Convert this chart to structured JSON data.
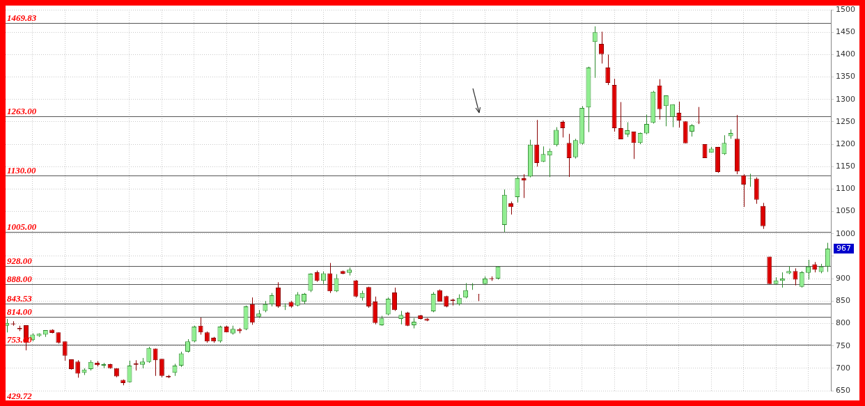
{
  "chart_data": {
    "type": "candlestick",
    "categories": [
      null,
      null,
      null,
      null,
      null,
      null,
      null,
      null,
      null,
      null,
      null,
      null,
      null,
      null,
      null,
      null,
      null,
      null,
      null,
      null,
      null,
      null,
      null,
      null,
      null,
      null,
      null,
      null,
      null,
      null,
      null,
      null,
      null,
      null,
      null,
      null,
      null,
      null,
      null,
      null,
      null,
      null,
      null,
      null,
      null,
      null,
      null,
      null,
      null,
      null,
      null,
      null,
      null,
      null,
      null,
      null,
      null,
      null,
      null,
      null,
      null,
      null,
      null,
      null,
      null,
      null,
      null,
      null,
      null,
      null,
      null,
      null,
      null,
      null,
      null,
      null,
      null,
      null,
      null,
      null,
      null,
      null,
      null,
      null,
      null,
      null,
      null,
      null,
      null,
      null,
      null,
      null,
      null,
      null,
      null,
      null,
      null,
      null,
      null,
      null,
      null,
      null,
      null,
      null,
      null,
      null,
      null,
      null,
      null,
      null,
      null,
      null,
      null,
      null,
      null,
      null,
      null,
      null,
      null,
      null,
      null,
      null,
      null,
      null,
      null,
      null,
      null,
      null
    ],
    "ohlc": [
      [
        795,
        810,
        780,
        801
      ],
      [
        800,
        805,
        795,
        798
      ],
      [
        790,
        795,
        783,
        787
      ],
      [
        796,
        796,
        740,
        757
      ],
      [
        763,
        778,
        760,
        775
      ],
      [
        772,
        778,
        770,
        777
      ],
      [
        775,
        785,
        770,
        785
      ],
      [
        786,
        787,
        778,
        779
      ],
      [
        780,
        780,
        755,
        757
      ],
      [
        760,
        760,
        717,
        728
      ],
      [
        720,
        720,
        697,
        698
      ],
      [
        715,
        718,
        679,
        688
      ],
      [
        690,
        700,
        685,
        697
      ],
      [
        698,
        718,
        695,
        714
      ],
      [
        712,
        716,
        704,
        707
      ],
      [
        706,
        712,
        700,
        709
      ],
      [
        709,
        710,
        699,
        700
      ],
      [
        700,
        700,
        680,
        682
      ],
      [
        674,
        675,
        662,
        667
      ],
      [
        669,
        717,
        668,
        706
      ],
      [
        711,
        718,
        695,
        708
      ],
      [
        708,
        723,
        700,
        715
      ],
      [
        714,
        748,
        712,
        745
      ],
      [
        744,
        744,
        683,
        718
      ],
      [
        721,
        721,
        680,
        683
      ],
      [
        683,
        685,
        678,
        680
      ],
      [
        690,
        710,
        683,
        706
      ],
      [
        706,
        737,
        703,
        733
      ],
      [
        737,
        765,
        735,
        760
      ],
      [
        760,
        795,
        758,
        793
      ],
      [
        795,
        813,
        775,
        780
      ],
      [
        780,
        782,
        757,
        760
      ],
      [
        768,
        770,
        757,
        760
      ],
      [
        760,
        795,
        757,
        793
      ],
      [
        793,
        795,
        780,
        780
      ],
      [
        778,
        795,
        775,
        788
      ],
      [
        787,
        790,
        778,
        783
      ],
      [
        787,
        840,
        785,
        838
      ],
      [
        843,
        858,
        797,
        802
      ],
      [
        815,
        830,
        812,
        822
      ],
      [
        828,
        850,
        825,
        843
      ],
      [
        843,
        868,
        838,
        863
      ],
      [
        880,
        892,
        835,
        838
      ],
      [
        838,
        845,
        830,
        839
      ],
      [
        848,
        850,
        835,
        838
      ],
      [
        840,
        870,
        838,
        865
      ],
      [
        849,
        868,
        843,
        866
      ],
      [
        873,
        912,
        870,
        911
      ],
      [
        914,
        918,
        893,
        895
      ],
      [
        895,
        916,
        888,
        912
      ],
      [
        912,
        935,
        868,
        872
      ],
      [
        872,
        910,
        870,
        901
      ],
      [
        917,
        918,
        910,
        911
      ],
      [
        913,
        925,
        907,
        920
      ],
      [
        896,
        897,
        858,
        860
      ],
      [
        857,
        873,
        851,
        868
      ],
      [
        881,
        882,
        835,
        838
      ],
      [
        849,
        860,
        798,
        801
      ],
      [
        796,
        817,
        795,
        812
      ],
      [
        820,
        858,
        818,
        855
      ],
      [
        869,
        880,
        828,
        830
      ],
      [
        810,
        828,
        798,
        819
      ],
      [
        824,
        826,
        794,
        795
      ],
      [
        796,
        812,
        789,
        804
      ],
      [
        818,
        819,
        809,
        810
      ],
      [
        811,
        812,
        805,
        806
      ],
      [
        827,
        870,
        825,
        866
      ],
      [
        874,
        876,
        849,
        849
      ],
      [
        861,
        862,
        836,
        838
      ],
      [
        853,
        855,
        840,
        850
      ],
      [
        843,
        865,
        840,
        857
      ],
      [
        858,
        890,
        856,
        874
      ],
      [
        885,
        890,
        875,
        886
      ],
      [
        865,
        866,
        850,
        864
      ],
      [
        888,
        905,
        886,
        900
      ],
      [
        901,
        905,
        895,
        899
      ],
      [
        900,
        928,
        898,
        927
      ],
      [
        1020,
        1099,
        1004,
        1087
      ],
      [
        1068,
        1072,
        1043,
        1060
      ],
      [
        1082,
        1128,
        1070,
        1124
      ],
      [
        1124,
        1133,
        1080,
        1119
      ],
      [
        1128,
        1210,
        1126,
        1199
      ],
      [
        1199,
        1254,
        1150,
        1158
      ],
      [
        1161,
        1195,
        1160,
        1178
      ],
      [
        1175,
        1190,
        1127,
        1185
      ],
      [
        1198,
        1238,
        1195,
        1232
      ],
      [
        1250,
        1253,
        1215,
        1236
      ],
      [
        1203,
        1223,
        1127,
        1169
      ],
      [
        1171,
        1212,
        1168,
        1209
      ],
      [
        1201,
        1285,
        1199,
        1281
      ],
      [
        1282,
        1373,
        1227,
        1371
      ],
      [
        1428,
        1463,
        1348,
        1450
      ],
      [
        1424,
        1451,
        1380,
        1401
      ],
      [
        1371,
        1400,
        1332,
        1337
      ],
      [
        1332,
        1346,
        1228,
        1236
      ],
      [
        1236,
        1294,
        1211,
        1211
      ],
      [
        1222,
        1249,
        1216,
        1231
      ],
      [
        1228,
        1228,
        1167,
        1203
      ],
      [
        1203,
        1226,
        1200,
        1225
      ],
      [
        1224,
        1266,
        1222,
        1245
      ],
      [
        1248,
        1319,
        1246,
        1317
      ],
      [
        1331,
        1345,
        1255,
        1278
      ],
      [
        1285,
        1309,
        1240,
        1309
      ],
      [
        1261,
        1289,
        1238,
        1289
      ],
      [
        1270,
        1295,
        1237,
        1253
      ],
      [
        1251,
        1251,
        1202,
        1202
      ],
      [
        1228,
        1245,
        1217,
        1242
      ],
      [
        1250,
        1283,
        1245,
        1249
      ],
      [
        1200,
        1200,
        1169,
        1169
      ],
      [
        1181,
        1194,
        1181,
        1190
      ],
      [
        1194,
        1194,
        1136,
        1138
      ],
      [
        1178,
        1220,
        1176,
        1203
      ],
      [
        1218,
        1233,
        1212,
        1225
      ],
      [
        1212,
        1265,
        1133,
        1139
      ],
      [
        1130,
        1133,
        1060,
        1110
      ],
      [
        1123,
        1134,
        1105,
        1124
      ],
      [
        1123,
        1126,
        1067,
        1076
      ],
      [
        1062,
        1069,
        1011,
        1017
      ],
      [
        949,
        949,
        888,
        888
      ],
      [
        888,
        903,
        887,
        896
      ],
      [
        895,
        914,
        880,
        900
      ],
      [
        912,
        928,
        910,
        917
      ],
      [
        917,
        923,
        885,
        898
      ],
      [
        882,
        917,
        880,
        914
      ],
      [
        913,
        942,
        898,
        927
      ],
      [
        932,
        937,
        914,
        920
      ],
      [
        915,
        933,
        912,
        927
      ],
      [
        927,
        980,
        915,
        967
      ]
    ],
    "ylim": [
      650,
      1500
    ],
    "yticks": [
      650,
      700,
      750,
      800,
      850,
      900,
      {
        "value": 950,
        "label": null
      },
      1000,
      1050,
      1100,
      1150,
      1200,
      1250,
      1300,
      1350,
      1400,
      1450,
      1500
    ],
    "grid": true,
    "tick_labels": "y",
    "ref_lines": [
      {
        "axis": "y",
        "value": 1469.83,
        "label": "1469.83"
      },
      {
        "axis": "y",
        "value": 1263,
        "label": "1263.00"
      },
      {
        "axis": "y",
        "value": 1130,
        "label": "1130.00"
      },
      {
        "axis": "y",
        "value": 1005,
        "label": "1005.00"
      },
      {
        "axis": "y",
        "value": 928,
        "label": "928.00"
      },
      {
        "axis": "y",
        "value": 888,
        "label": "888.00"
      },
      {
        "axis": "y",
        "value": 843.53,
        "label": "843.53"
      },
      {
        "axis": "y",
        "value": 814,
        "label": "814.00"
      },
      {
        "axis": "y",
        "value": 753,
        "label": "753.00"
      }
    ],
    "annotations": [
      "429.72",
      "967"
    ]
  }
}
